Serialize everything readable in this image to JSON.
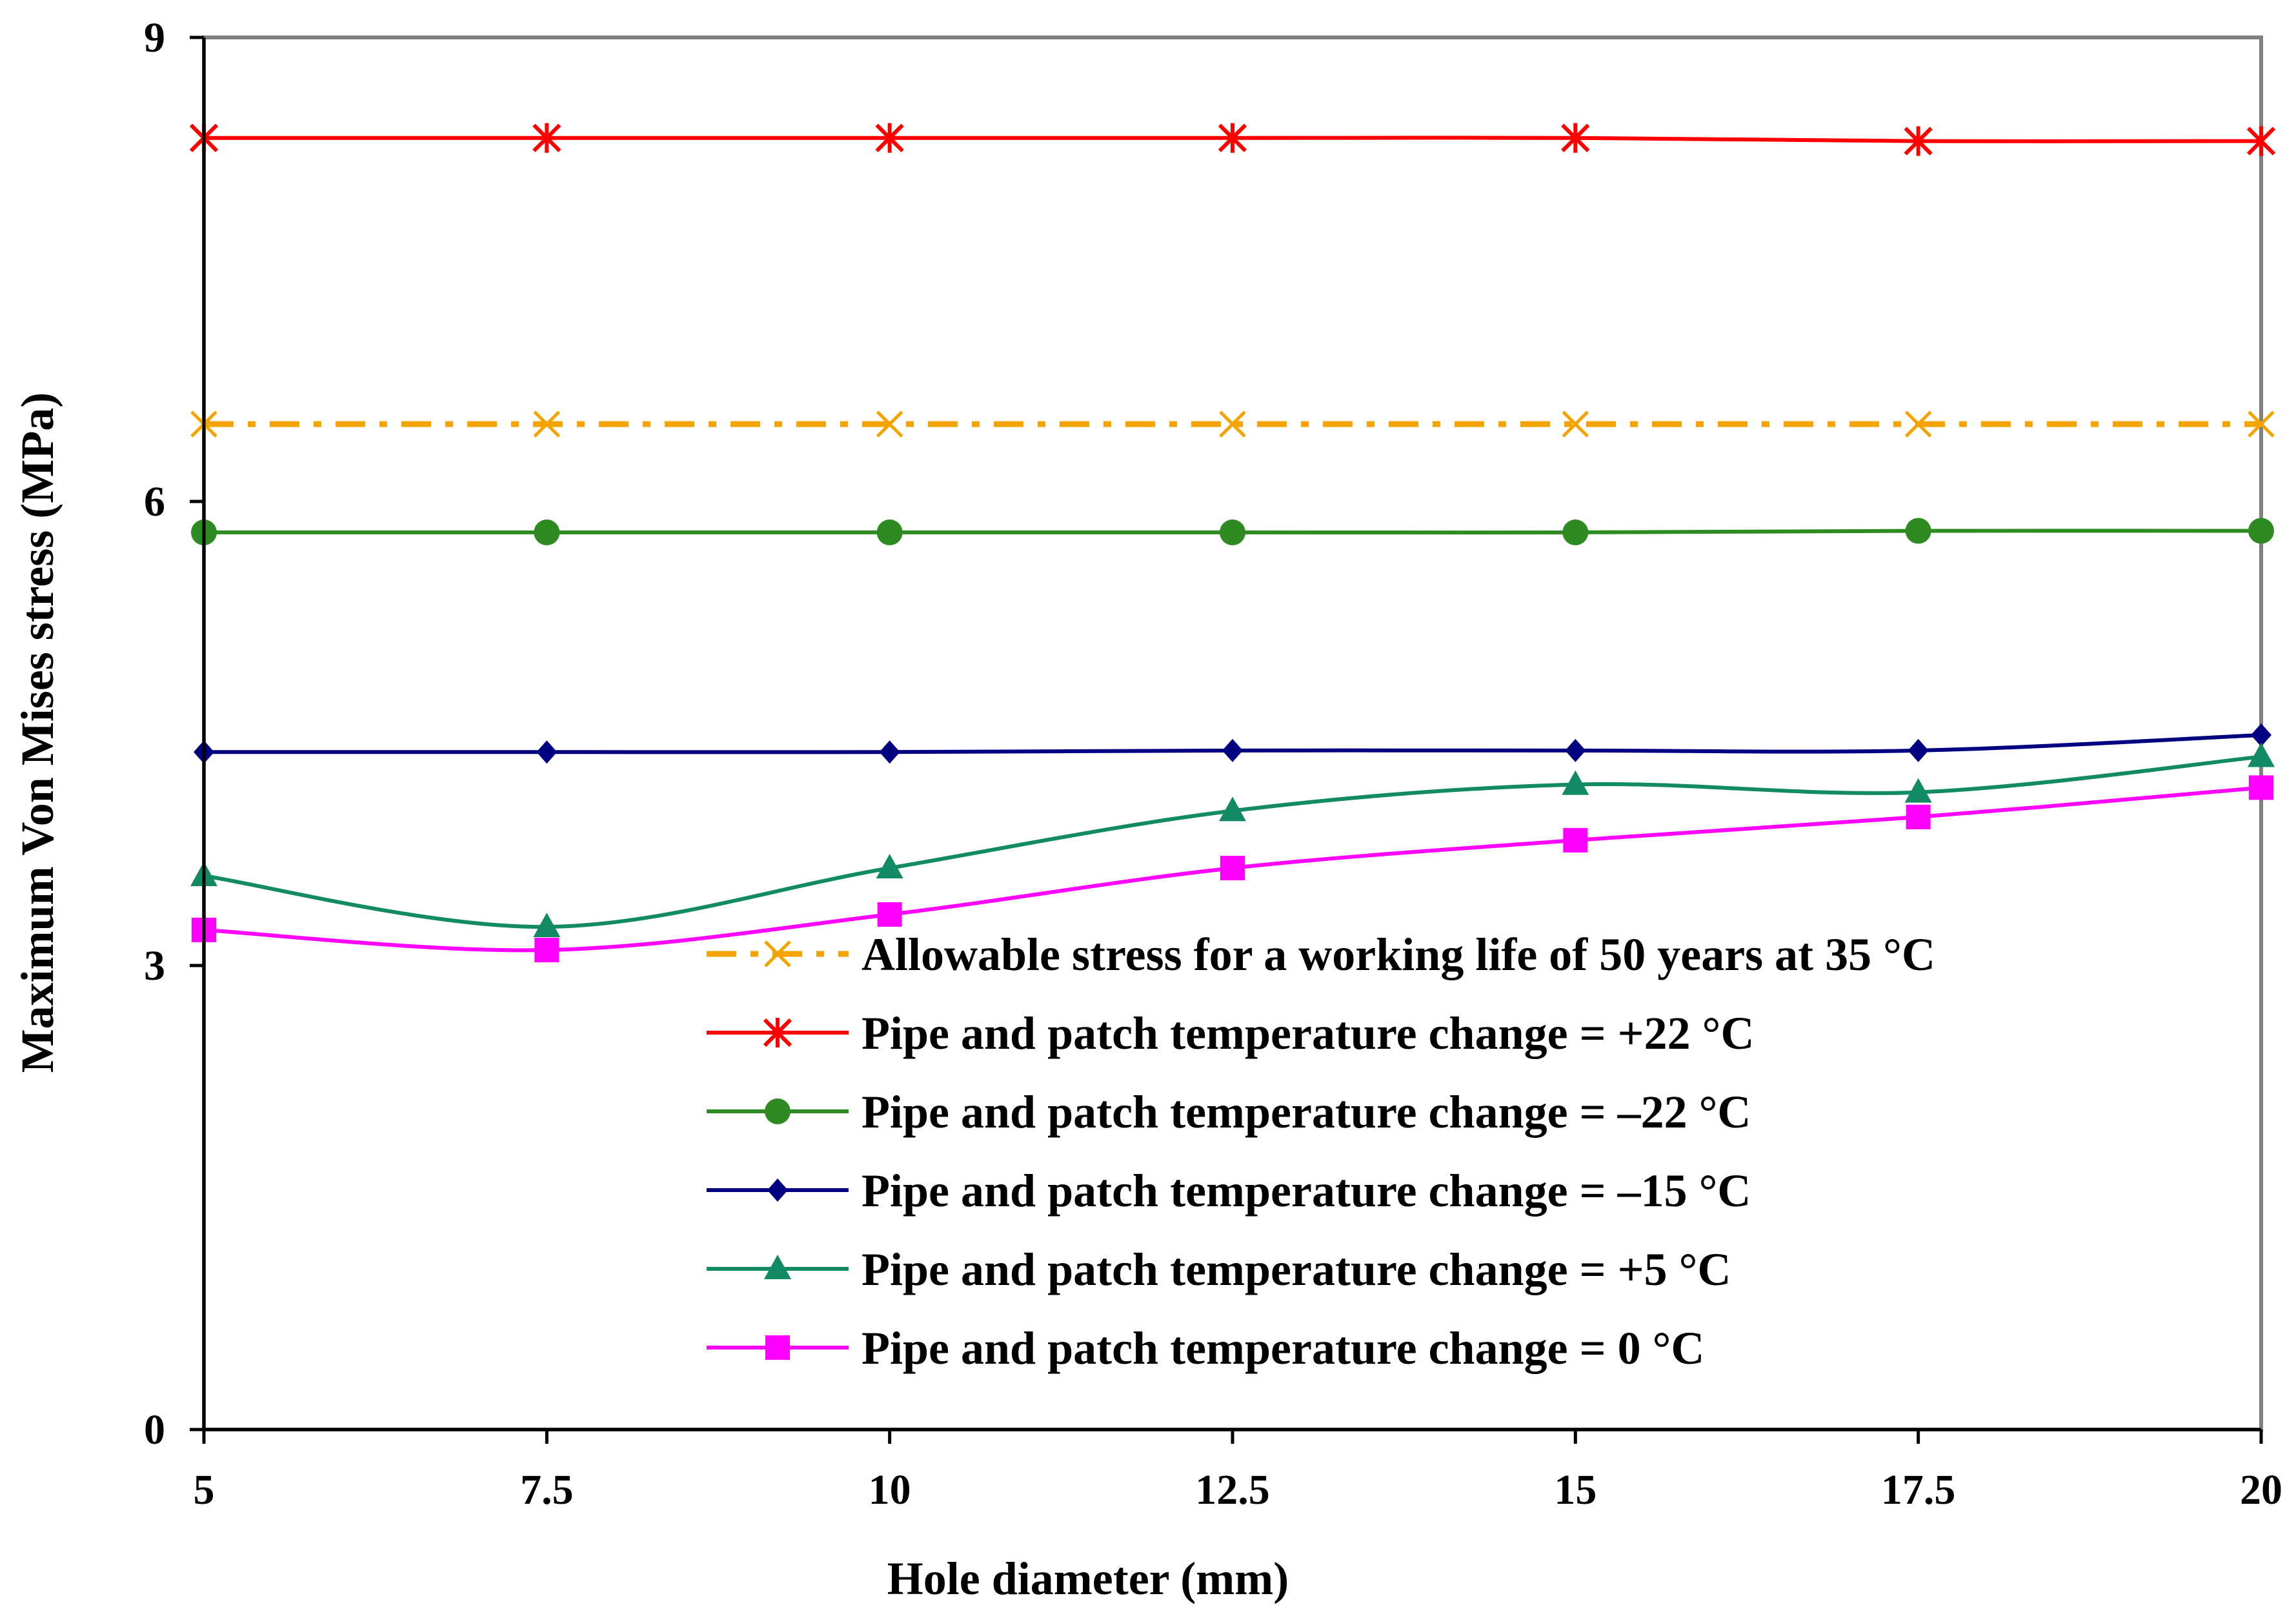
{
  "chart_data": {
    "type": "line",
    "title": "",
    "xlabel": "Hole diameter (mm)",
    "ylabel": "Maximum Von Mises stress (MPa)",
    "xlim": [
      5,
      20
    ],
    "ylim": [
      0,
      9
    ],
    "x": [
      5,
      7.5,
      10,
      12.5,
      15,
      17.5,
      20
    ],
    "x_tick_labels": [
      "5",
      "7.5",
      "10",
      "12.5",
      "15",
      "17.5",
      "20"
    ],
    "y_ticks": [
      0,
      3,
      6,
      9
    ],
    "y_tick_labels": [
      "0",
      "3",
      "6",
      "9"
    ],
    "grid": false,
    "legend_position": "bottom-center",
    "series": [
      {
        "name": "Allowable stress for a working life of 50 years at 35 °C",
        "values": [
          6.5,
          6.5,
          6.5,
          6.5,
          6.5,
          6.5,
          6.5
        ],
        "color": "#f5a300",
        "marker": "x",
        "line_style": "dash-dot"
      },
      {
        "name": "Pipe and patch temperature change = +22 °C",
        "values": [
          8.35,
          8.35,
          8.35,
          8.35,
          8.35,
          8.33,
          8.33
        ],
        "color": "#ff0000",
        "marker": "asterisk",
        "line_style": "solid"
      },
      {
        "name": "Pipe and patch temperature change = –22 °C",
        "values": [
          5.8,
          5.8,
          5.8,
          5.8,
          5.8,
          5.81,
          5.81
        ],
        "color": "#2e8b22",
        "marker": "circle",
        "line_style": "solid"
      },
      {
        "name": "Pipe and patch temperature change = –15 °C",
        "values": [
          4.38,
          4.38,
          4.38,
          4.39,
          4.39,
          4.39,
          4.49
        ],
        "color": "#000080",
        "marker": "diamond",
        "line_style": "solid"
      },
      {
        "name": "Pipe and patch temperature change = +5 °C",
        "values": [
          3.58,
          3.25,
          3.63,
          4.0,
          4.17,
          4.12,
          4.35
        ],
        "color": "#128a64",
        "marker": "triangle",
        "line_style": "solid"
      },
      {
        "name": "Pipe and patch temperature change = 0 °C",
        "values": [
          3.23,
          3.1,
          3.33,
          3.63,
          3.81,
          3.96,
          4.15
        ],
        "color": "#ff00ff",
        "marker": "square",
        "line_style": "solid"
      }
    ]
  }
}
